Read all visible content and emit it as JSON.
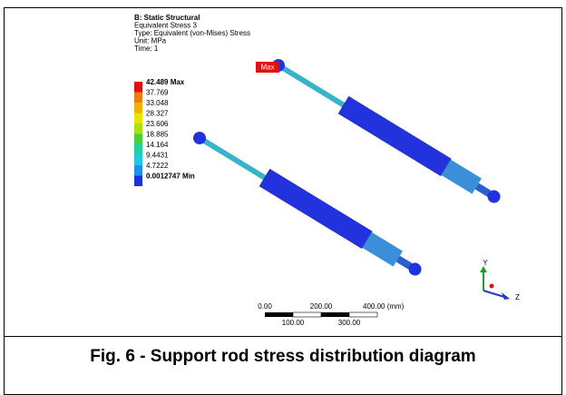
{
  "result_info": {
    "lines": [
      "B: Static Structural",
      "Equivalent Stress 3",
      "Type: Equivalent (von-Mises) Stress",
      "Unit: MPa",
      "Time: 1"
    ]
  },
  "legend": {
    "entries": [
      {
        "label": "42.489 Max",
        "color": "#e01010"
      },
      {
        "label": "37.769",
        "color": "#f07a10"
      },
      {
        "label": "33.048",
        "color": "#f0b400"
      },
      {
        "label": "28.327",
        "color": "#e6e600"
      },
      {
        "label": "23.606",
        "color": "#a8e010"
      },
      {
        "label": "18.885",
        "color": "#40d040"
      },
      {
        "label": "14.164",
        "color": "#20d0a0"
      },
      {
        "label": "9.4431",
        "color": "#20c8e0"
      },
      {
        "label": "4.7222",
        "color": "#2090f0"
      },
      {
        "label": "0.0012747 Min",
        "color": "#1c2ee0"
      }
    ]
  },
  "max_marker": "Max",
  "scale_bar": {
    "top_labels": [
      "0.00",
      "200.00",
      "400.00 (mm)"
    ],
    "bottom_labels": [
      "100.00",
      "300.00"
    ]
  },
  "triad": {
    "y": "Y",
    "z": "Z"
  },
  "caption": "Fig. 6 - Support rod stress distribution diagram"
}
